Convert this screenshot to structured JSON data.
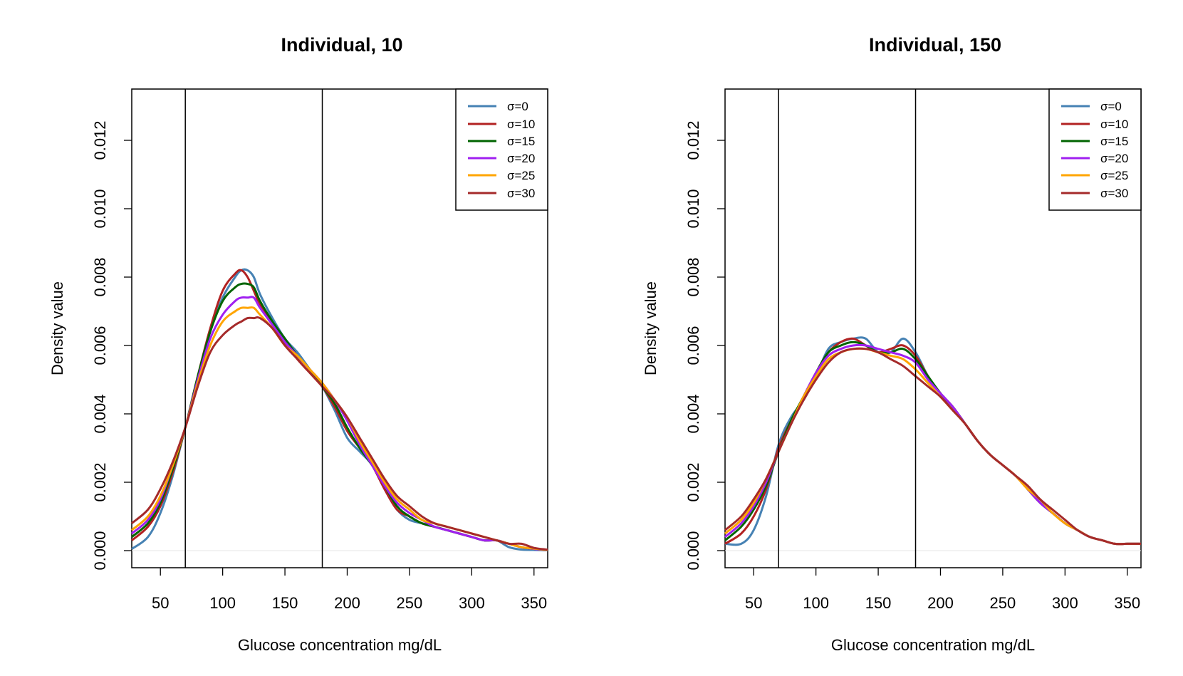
{
  "chart_data": [
    {
      "type": "line",
      "title": "Individual, 10",
      "xlabel": "Glucose concentration mg/dL",
      "ylabel": "Density value",
      "xlim": [
        27,
        361
      ],
      "ylim": [
        -0.0005,
        0.0135
      ],
      "xticks": [
        50,
        100,
        150,
        200,
        250,
        300,
        350
      ],
      "xtick_labels": [
        "50",
        "100",
        "150",
        "200",
        "250",
        "300",
        "350"
      ],
      "yticks": [
        0.0,
        0.002,
        0.004,
        0.006,
        0.008,
        0.01,
        0.012
      ],
      "ytick_labels": [
        "0.000",
        "0.002",
        "0.004",
        "0.006",
        "0.008",
        "0.010",
        "0.012"
      ],
      "vlines": [
        70,
        180
      ],
      "legend_position": "top-right",
      "x": [
        27,
        40,
        50,
        60,
        70,
        80,
        90,
        100,
        110,
        115,
        120,
        125,
        130,
        140,
        150,
        160,
        170,
        180,
        190,
        200,
        210,
        220,
        230,
        240,
        250,
        260,
        270,
        280,
        290,
        300,
        310,
        320,
        330,
        340,
        350,
        361
      ],
      "series": [
        {
          "name": "σ=0",
          "color": "#4682B4",
          "values": [
            5e-05,
            0.0004,
            0.0011,
            0.0022,
            0.0036,
            0.005,
            0.0064,
            0.0074,
            0.008,
            0.0082,
            0.0082,
            0.008,
            0.0075,
            0.0068,
            0.0062,
            0.0058,
            0.0053,
            0.0048,
            0.0041,
            0.0033,
            0.0029,
            0.0025,
            0.0018,
            0.0012,
            0.0009,
            0.0008,
            0.0007,
            0.0006,
            0.0005,
            0.0004,
            0.0003,
            0.0003,
            0.0001,
            3e-05,
            2e-05,
            1e-05
          ]
        },
        {
          "name": "σ=10",
          "color": "#B22222",
          "values": [
            0.0003,
            0.0007,
            0.0013,
            0.0023,
            0.0036,
            0.0051,
            0.0065,
            0.0076,
            0.0081,
            0.0082,
            0.008,
            0.0076,
            0.0072,
            0.0066,
            0.0061,
            0.0056,
            0.0052,
            0.0048,
            0.0042,
            0.0035,
            0.003,
            0.0025,
            0.0018,
            0.0012,
            0.001,
            0.0008,
            0.0007,
            0.0006,
            0.0005,
            0.0004,
            0.0003,
            0.0003,
            0.0002,
            0.0001,
            5e-05,
            2e-05
          ]
        },
        {
          "name": "σ=15",
          "color": "#006400",
          "values": [
            0.0004,
            0.0008,
            0.0014,
            0.0024,
            0.0036,
            0.0051,
            0.0064,
            0.0073,
            0.0077,
            0.0078,
            0.0078,
            0.0077,
            0.0073,
            0.0067,
            0.0062,
            0.0057,
            0.0053,
            0.0048,
            0.0043,
            0.0036,
            0.003,
            0.0025,
            0.0019,
            0.0013,
            0.001,
            0.0008,
            0.0007,
            0.0006,
            0.0005,
            0.0004,
            0.0003,
            0.0003,
            0.0002,
            0.0001,
            5e-05,
            2e-05
          ]
        },
        {
          "name": "σ=20",
          "color": "#A020F0",
          "values": [
            0.0005,
            0.0009,
            0.0015,
            0.0025,
            0.0036,
            0.005,
            0.0062,
            0.0069,
            0.0073,
            0.0074,
            0.0074,
            0.0074,
            0.0071,
            0.0066,
            0.0061,
            0.0057,
            0.0053,
            0.0049,
            0.0044,
            0.0038,
            0.0031,
            0.0025,
            0.0019,
            0.0014,
            0.0011,
            0.0009,
            0.0007,
            0.0006,
            0.0005,
            0.0004,
            0.0003,
            0.0003,
            0.0002,
            0.0001,
            5e-05,
            2e-05
          ]
        },
        {
          "name": "σ=25",
          "color": "#FFA500",
          "values": [
            0.0006,
            0.001,
            0.0016,
            0.0025,
            0.0036,
            0.0049,
            0.006,
            0.0067,
            0.007,
            0.0071,
            0.0071,
            0.0071,
            0.0069,
            0.0065,
            0.006,
            0.0057,
            0.0053,
            0.0049,
            0.0044,
            0.0039,
            0.0032,
            0.0026,
            0.002,
            0.0015,
            0.0012,
            0.0009,
            0.0008,
            0.0007,
            0.0006,
            0.0005,
            0.0004,
            0.0003,
            0.0002,
            0.0001,
            6e-05,
            2e-05
          ]
        },
        {
          "name": "σ=30",
          "color": "#A52A2A",
          "values": [
            0.0008,
            0.0012,
            0.0018,
            0.0026,
            0.0036,
            0.0048,
            0.0058,
            0.0063,
            0.0066,
            0.0067,
            0.0068,
            0.0068,
            0.0068,
            0.0065,
            0.006,
            0.0056,
            0.0052,
            0.0048,
            0.0044,
            0.0039,
            0.0033,
            0.0027,
            0.0021,
            0.0016,
            0.0013,
            0.001,
            0.0008,
            0.0007,
            0.0006,
            0.0005,
            0.0004,
            0.0003,
            0.0002,
            0.0002,
            8e-05,
            3e-05
          ]
        }
      ]
    },
    {
      "type": "line",
      "title": "Individual, 150",
      "xlabel": "Glucose concentration mg/dL",
      "ylabel": "Density value",
      "xlim": [
        27,
        361
      ],
      "ylim": [
        -0.0005,
        0.0135
      ],
      "xticks": [
        50,
        100,
        150,
        200,
        250,
        300,
        350
      ],
      "xtick_labels": [
        "50",
        "100",
        "150",
        "200",
        "250",
        "300",
        "350"
      ],
      "yticks": [
        0.0,
        0.002,
        0.004,
        0.006,
        0.008,
        0.01,
        0.012
      ],
      "ytick_labels": [
        "0.000",
        "0.002",
        "0.004",
        "0.006",
        "0.008",
        "0.010",
        "0.012"
      ],
      "vlines": [
        70,
        180
      ],
      "legend_position": "top-right",
      "x": [
        27,
        40,
        50,
        60,
        70,
        80,
        90,
        100,
        110,
        120,
        130,
        140,
        150,
        160,
        170,
        180,
        190,
        200,
        210,
        220,
        230,
        240,
        250,
        260,
        270,
        280,
        290,
        300,
        310,
        320,
        330,
        340,
        350,
        361
      ],
      "series": [
        {
          "name": "σ=0",
          "color": "#4682B4",
          "values": [
            0.0002,
            0.0002,
            0.0006,
            0.0016,
            0.0031,
            0.0039,
            0.0044,
            0.0051,
            0.0059,
            0.0061,
            0.0062,
            0.0062,
            0.0058,
            0.0058,
            0.0062,
            0.0058,
            0.0051,
            0.0046,
            0.0042,
            0.0037,
            0.0032,
            0.0028,
            0.0025,
            0.0022,
            0.0018,
            0.0014,
            0.0011,
            0.0008,
            0.0006,
            0.0004,
            0.0003,
            0.0002,
            0.0002,
            0.0002
          ]
        },
        {
          "name": "σ=10",
          "color": "#B22222",
          "values": [
            0.0002,
            0.0005,
            0.001,
            0.0018,
            0.003,
            0.0038,
            0.0045,
            0.0052,
            0.0058,
            0.0061,
            0.0062,
            0.006,
            0.0058,
            0.0059,
            0.006,
            0.0057,
            0.0051,
            0.0046,
            0.0042,
            0.0037,
            0.0032,
            0.0028,
            0.0025,
            0.0022,
            0.0018,
            0.0014,
            0.0011,
            0.0008,
            0.0006,
            0.0004,
            0.0003,
            0.0002,
            0.0002,
            0.0002
          ]
        },
        {
          "name": "σ=15",
          "color": "#006400",
          "values": [
            0.0003,
            0.0007,
            0.0012,
            0.0019,
            0.0029,
            0.0038,
            0.0045,
            0.0052,
            0.0058,
            0.006,
            0.0061,
            0.006,
            0.0058,
            0.0058,
            0.0059,
            0.0056,
            0.0051,
            0.0046,
            0.0042,
            0.0037,
            0.0032,
            0.0028,
            0.0025,
            0.0022,
            0.0018,
            0.0014,
            0.0011,
            0.0008,
            0.0006,
            0.0004,
            0.0003,
            0.0002,
            0.0002,
            0.0002
          ]
        },
        {
          "name": "σ=20",
          "color": "#A020F0",
          "values": [
            0.0004,
            0.0008,
            0.0013,
            0.002,
            0.0029,
            0.0037,
            0.0045,
            0.0052,
            0.0057,
            0.0059,
            0.006,
            0.006,
            0.0059,
            0.0058,
            0.0057,
            0.0055,
            0.005,
            0.0046,
            0.0042,
            0.0037,
            0.0032,
            0.0028,
            0.0025,
            0.0022,
            0.0018,
            0.0014,
            0.0011,
            0.0008,
            0.0006,
            0.0004,
            0.0003,
            0.0002,
            0.0002,
            0.0002
          ]
        },
        {
          "name": "σ=25",
          "color": "#FFA500",
          "values": [
            0.0005,
            0.0009,
            0.0014,
            0.0021,
            0.0029,
            0.0037,
            0.0045,
            0.0051,
            0.0056,
            0.0058,
            0.0059,
            0.0059,
            0.0058,
            0.0057,
            0.0056,
            0.0053,
            0.0049,
            0.0045,
            0.0041,
            0.0037,
            0.0032,
            0.0028,
            0.0025,
            0.0022,
            0.0018,
            0.0015,
            0.0011,
            0.0008,
            0.0006,
            0.0004,
            0.0003,
            0.0002,
            0.0002,
            0.0002
          ]
        },
        {
          "name": "σ=30",
          "color": "#A52A2A",
          "values": [
            0.0006,
            0.001,
            0.0015,
            0.0021,
            0.0029,
            0.0037,
            0.0044,
            0.005,
            0.0055,
            0.0058,
            0.0059,
            0.0059,
            0.0058,
            0.0056,
            0.0054,
            0.0051,
            0.0048,
            0.0045,
            0.0041,
            0.0037,
            0.0032,
            0.0028,
            0.0025,
            0.0022,
            0.0019,
            0.0015,
            0.0012,
            0.0009,
            0.0006,
            0.0004,
            0.0003,
            0.0002,
            0.0002,
            0.0002
          ]
        }
      ]
    }
  ]
}
